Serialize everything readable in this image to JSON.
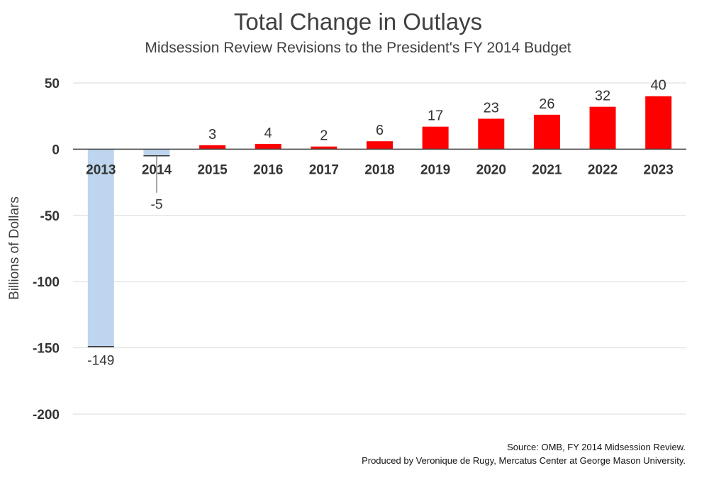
{
  "chart_data": {
    "type": "bar",
    "title": "Total Change in Outlays",
    "subtitle": "Midsession Review Revisions to the President's FY 2014 Budget",
    "xlabel": "",
    "ylabel": "Billions of Dollars",
    "ylim": [
      -200,
      50
    ],
    "yticks": [
      50,
      0,
      -50,
      -100,
      -150,
      -200
    ],
    "grid": true,
    "legend": "none",
    "categories": [
      "2013",
      "2014",
      "2015",
      "2016",
      "2017",
      "2018",
      "2019",
      "2020",
      "2021",
      "2022",
      "2023"
    ],
    "values": [
      -149,
      -5,
      3,
      4,
      2,
      6,
      17,
      23,
      26,
      32,
      40
    ],
    "data_labels": [
      "-149",
      "-5",
      "3",
      "4",
      "2",
      "6",
      "17",
      "23",
      "26",
      "32",
      "40"
    ],
    "colors": {
      "negative": "#bdd5ee",
      "positive": "#ff0000"
    }
  },
  "source": {
    "line1": "Source: OMB, FY 2014 Midsession Review.",
    "line2": "Produced by Veronique de Rugy, Mercatus Center at George Mason University."
  }
}
